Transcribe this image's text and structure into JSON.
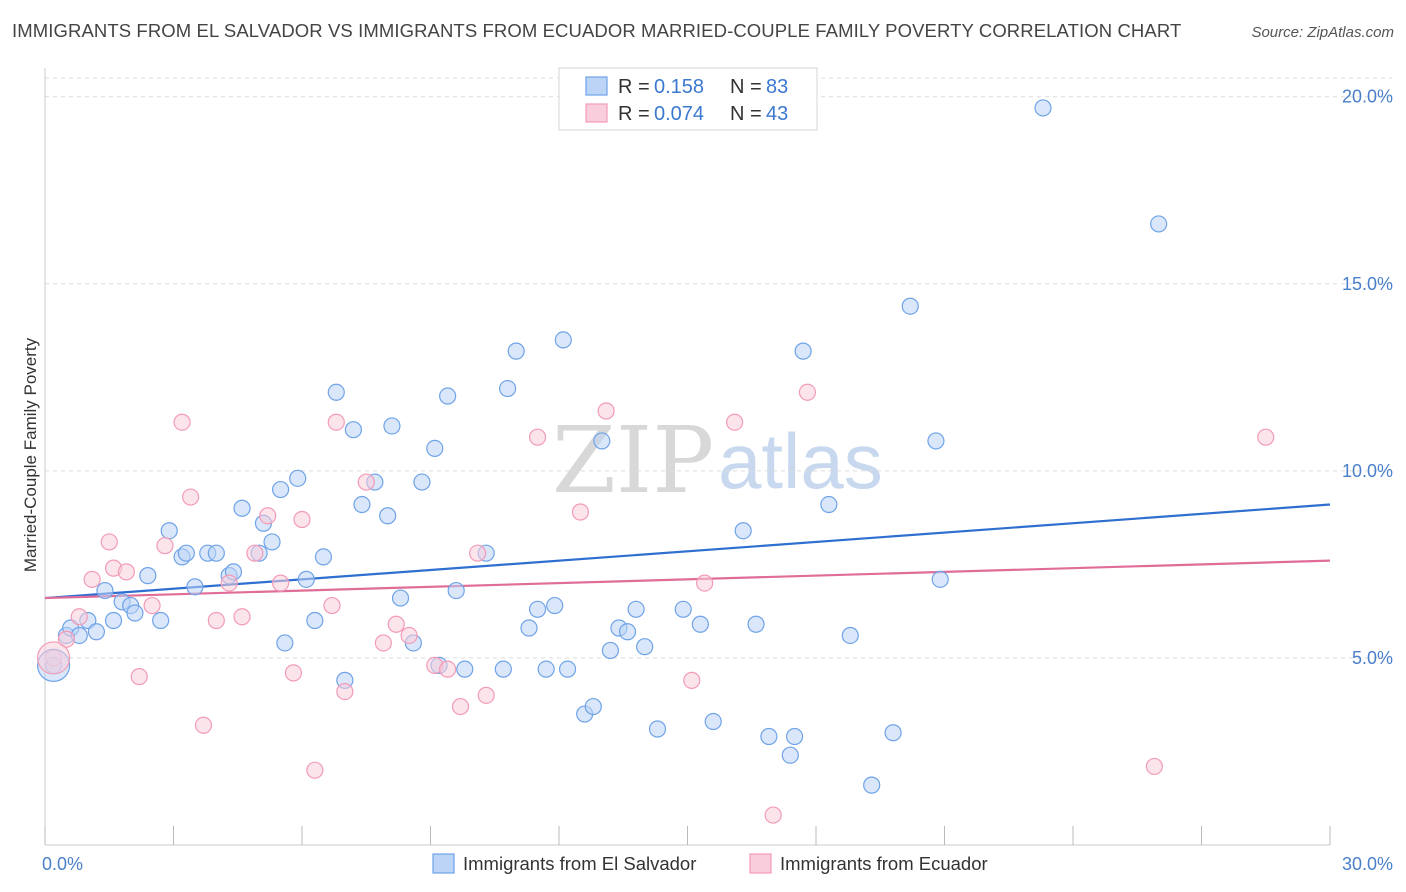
{
  "title": "IMMIGRANTS FROM EL SALVADOR VS IMMIGRANTS FROM ECUADOR MARRIED-COUPLE FAMILY POVERTY CORRELATION CHART",
  "source": "Source: ZipAtlas.com",
  "watermark": {
    "zip": "ZIP",
    "atlas": "atlas"
  },
  "legend": {
    "r_label": "R =",
    "n_label": "N =",
    "rows": [
      {
        "r": "0.158",
        "n": "83"
      },
      {
        "r": "0.074",
        "n": "43"
      }
    ]
  },
  "chart_data": {
    "type": "scatter",
    "ylabel": "Married-Couple Family Poverty",
    "xlim": [
      0,
      30
    ],
    "ylim": [
      0,
      20.5
    ],
    "y_ticks": [
      {
        "v": 5,
        "label": "5.0%"
      },
      {
        "v": 10,
        "label": "10.0%"
      },
      {
        "v": 15,
        "label": "15.0%"
      },
      {
        "v": 20,
        "label": "20.0%"
      }
    ],
    "x_tick_labels": [
      {
        "v": 0,
        "label": "0.0%"
      },
      {
        "v": 30,
        "label": "30.0%"
      }
    ],
    "x_minor_ticks": [
      0,
      3,
      6,
      9,
      12,
      15,
      18,
      21,
      24,
      27,
      30
    ],
    "grid": true,
    "legend_position": "top-center",
    "series": [
      {
        "name": "Immigrants from El Salvador",
        "color": "#6fa3e8",
        "fill": "#bcd4f5",
        "line_color": "#2f6fd0",
        "trend": {
          "x0": 0,
          "y0": 6.6,
          "x1": 30,
          "y1": 9.1
        },
        "points": [
          [
            0.2,
            4.8
          ],
          [
            0.5,
            5.6
          ],
          [
            0.6,
            5.8
          ],
          [
            0.8,
            5.6
          ],
          [
            1.0,
            6.0
          ],
          [
            1.2,
            5.7
          ],
          [
            1.4,
            6.8
          ],
          [
            1.6,
            6.0
          ],
          [
            1.8,
            6.5
          ],
          [
            2.0,
            6.4
          ],
          [
            2.1,
            6.2
          ],
          [
            2.4,
            7.2
          ],
          [
            2.7,
            6.0
          ],
          [
            2.9,
            8.4
          ],
          [
            3.2,
            7.7
          ],
          [
            3.3,
            7.8
          ],
          [
            3.5,
            6.9
          ],
          [
            3.8,
            7.8
          ],
          [
            4.0,
            7.8
          ],
          [
            4.3,
            7.2
          ],
          [
            4.4,
            7.3
          ],
          [
            4.6,
            9.0
          ],
          [
            5.0,
            7.8
          ],
          [
            5.1,
            8.6
          ],
          [
            5.3,
            8.1
          ],
          [
            5.5,
            9.5
          ],
          [
            5.6,
            5.4
          ],
          [
            5.9,
            9.8
          ],
          [
            6.1,
            7.1
          ],
          [
            6.3,
            6.0
          ],
          [
            6.5,
            7.7
          ],
          [
            6.8,
            12.1
          ],
          [
            7.0,
            4.4
          ],
          [
            7.2,
            11.1
          ],
          [
            7.4,
            9.1
          ],
          [
            7.7,
            9.7
          ],
          [
            8.0,
            8.8
          ],
          [
            8.1,
            11.2
          ],
          [
            8.3,
            6.6
          ],
          [
            8.6,
            5.4
          ],
          [
            8.8,
            9.7
          ],
          [
            9.1,
            10.6
          ],
          [
            9.2,
            4.8
          ],
          [
            9.4,
            12.0
          ],
          [
            9.6,
            6.8
          ],
          [
            9.8,
            4.7
          ],
          [
            10.3,
            7.8
          ],
          [
            10.7,
            4.7
          ],
          [
            10.8,
            12.2
          ],
          [
            11.0,
            13.2
          ],
          [
            11.3,
            5.8
          ],
          [
            11.5,
            6.3
          ],
          [
            11.7,
            4.7
          ],
          [
            11.9,
            6.4
          ],
          [
            12.1,
            13.5
          ],
          [
            12.2,
            4.7
          ],
          [
            12.6,
            3.5
          ],
          [
            12.8,
            3.7
          ],
          [
            13.0,
            10.8
          ],
          [
            13.2,
            5.2
          ],
          [
            13.4,
            5.8
          ],
          [
            13.6,
            5.7
          ],
          [
            13.8,
            6.3
          ],
          [
            14.0,
            5.3
          ],
          [
            14.3,
            3.1
          ],
          [
            14.9,
            6.3
          ],
          [
            15.3,
            5.9
          ],
          [
            15.6,
            3.3
          ],
          [
            16.3,
            8.4
          ],
          [
            16.6,
            5.9
          ],
          [
            16.9,
            2.9
          ],
          [
            17.4,
            2.4
          ],
          [
            17.5,
            2.9
          ],
          [
            17.7,
            13.2
          ],
          [
            18.3,
            9.1
          ],
          [
            18.8,
            5.6
          ],
          [
            19.3,
            1.6
          ],
          [
            19.8,
            3.0
          ],
          [
            20.2,
            14.4
          ],
          [
            20.8,
            10.8
          ],
          [
            20.9,
            7.1
          ],
          [
            23.3,
            19.7
          ],
          [
            26.0,
            16.6
          ]
        ]
      },
      {
        "name": "Immigrants from Ecuador",
        "color": "#f29bb8",
        "fill": "#f9cddb",
        "line_color": "#e06c98",
        "trend": {
          "x0": 0,
          "y0": 6.6,
          "x1": 30,
          "y1": 7.6
        },
        "points": [
          [
            0.2,
            5.0
          ],
          [
            0.5,
            5.5
          ],
          [
            0.8,
            6.1
          ],
          [
            1.1,
            7.1
          ],
          [
            1.5,
            8.1
          ],
          [
            1.6,
            7.4
          ],
          [
            1.9,
            7.3
          ],
          [
            2.2,
            4.5
          ],
          [
            2.5,
            6.4
          ],
          [
            2.8,
            8.0
          ],
          [
            3.2,
            11.3
          ],
          [
            3.4,
            9.3
          ],
          [
            3.7,
            3.2
          ],
          [
            4.0,
            6.0
          ],
          [
            4.3,
            7.0
          ],
          [
            4.6,
            6.1
          ],
          [
            4.9,
            7.8
          ],
          [
            5.2,
            8.8
          ],
          [
            5.5,
            7.0
          ],
          [
            5.8,
            4.6
          ],
          [
            6.0,
            8.7
          ],
          [
            6.3,
            2.0
          ],
          [
            6.7,
            6.4
          ],
          [
            6.8,
            11.3
          ],
          [
            7.0,
            4.1
          ],
          [
            7.5,
            9.7
          ],
          [
            7.9,
            5.4
          ],
          [
            8.2,
            5.9
          ],
          [
            8.5,
            5.6
          ],
          [
            9.1,
            4.8
          ],
          [
            9.4,
            4.7
          ],
          [
            9.7,
            3.7
          ],
          [
            10.1,
            7.8
          ],
          [
            10.3,
            4.0
          ],
          [
            11.5,
            10.9
          ],
          [
            12.5,
            8.9
          ],
          [
            13.1,
            11.6
          ],
          [
            15.1,
            4.4
          ],
          [
            15.4,
            7.0
          ],
          [
            16.1,
            11.3
          ],
          [
            17.8,
            12.1
          ],
          [
            17.0,
            0.8
          ],
          [
            25.9,
            2.1
          ]
        ]
      }
    ],
    "emphasized_points": [
      {
        "series": 0,
        "x": 0.2,
        "y": 4.8,
        "size": "large"
      },
      {
        "series": 1,
        "x": 0.2,
        "y": 5.0,
        "size": "large"
      },
      {
        "series": 1,
        "x": 28.5,
        "y": 10.9
      }
    ]
  },
  "bottom_legend": [
    {
      "label": "Immigrants from El Salvador"
    },
    {
      "label": "Immigrants from Ecuador"
    }
  ]
}
